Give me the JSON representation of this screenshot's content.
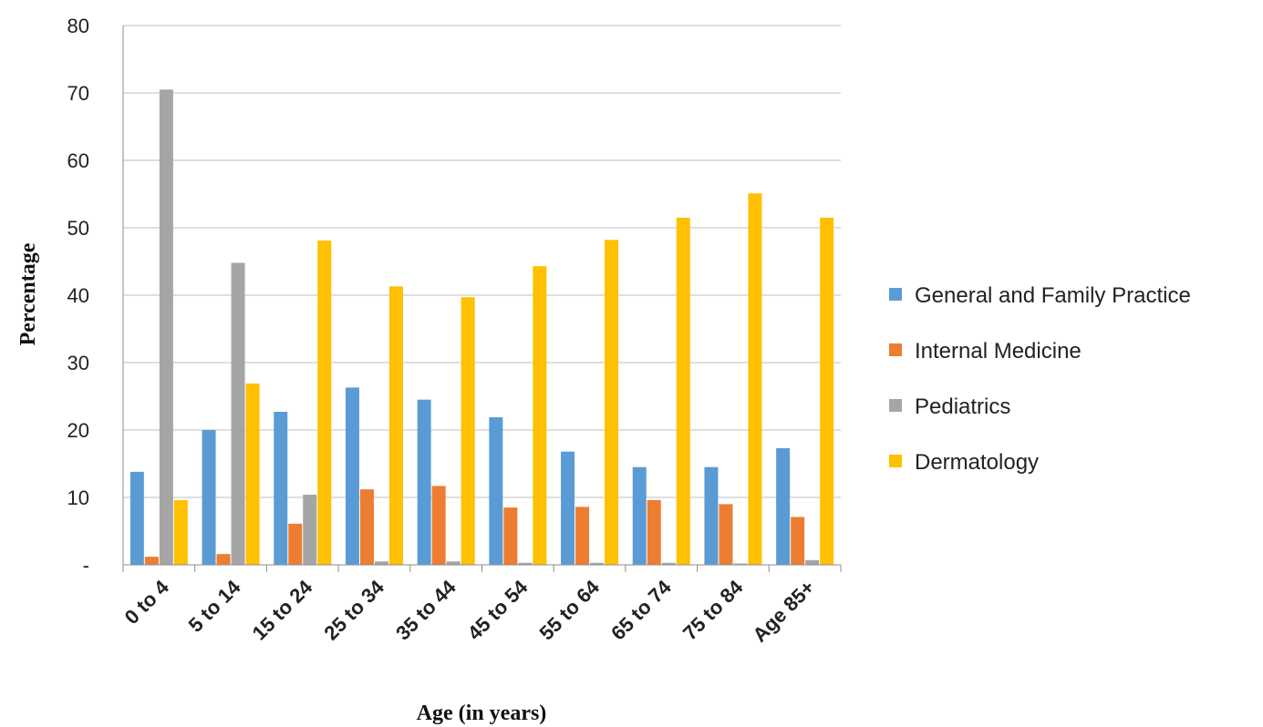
{
  "chart_data": {
    "type": "bar",
    "xlabel": "Age (in years)",
    "ylabel": "Percentage",
    "ylim": [
      0,
      80
    ],
    "yticks": [
      0,
      10,
      20,
      30,
      40,
      50,
      60,
      70,
      80
    ],
    "ytick_labels": [
      "-",
      "10",
      "20",
      "30",
      "40",
      "50",
      "60",
      "70",
      "80"
    ],
    "grid": true,
    "legend_position": "right",
    "categories": [
      "0 to 4",
      "5 to 14",
      "15 to 24",
      "25 to 34",
      "35 to 44",
      "45 to 54",
      "55 to 64",
      "65 to 74",
      "75 to 84",
      "Age 85+"
    ],
    "series": [
      {
        "name": "General and Family Practice",
        "color": "#5B9BD5",
        "values": [
          13.8,
          20.0,
          22.7,
          26.3,
          24.5,
          21.9,
          16.8,
          14.5,
          14.5,
          17.3
        ]
      },
      {
        "name": "Internal Medicine",
        "color": "#ED7D31",
        "values": [
          1.2,
          1.6,
          6.1,
          11.2,
          11.7,
          8.5,
          8.6,
          9.6,
          9.0,
          7.1
        ]
      },
      {
        "name": "Pediatrics",
        "color": "#A5A5A5",
        "values": [
          70.5,
          44.8,
          10.4,
          0.5,
          0.5,
          0.3,
          0.3,
          0.3,
          0.2,
          0.7
        ]
      },
      {
        "name": "Dermatology",
        "color": "#FFC000",
        "values": [
          9.6,
          26.9,
          48.1,
          41.3,
          39.7,
          44.3,
          48.2,
          51.5,
          55.1,
          51.5
        ]
      }
    ]
  }
}
